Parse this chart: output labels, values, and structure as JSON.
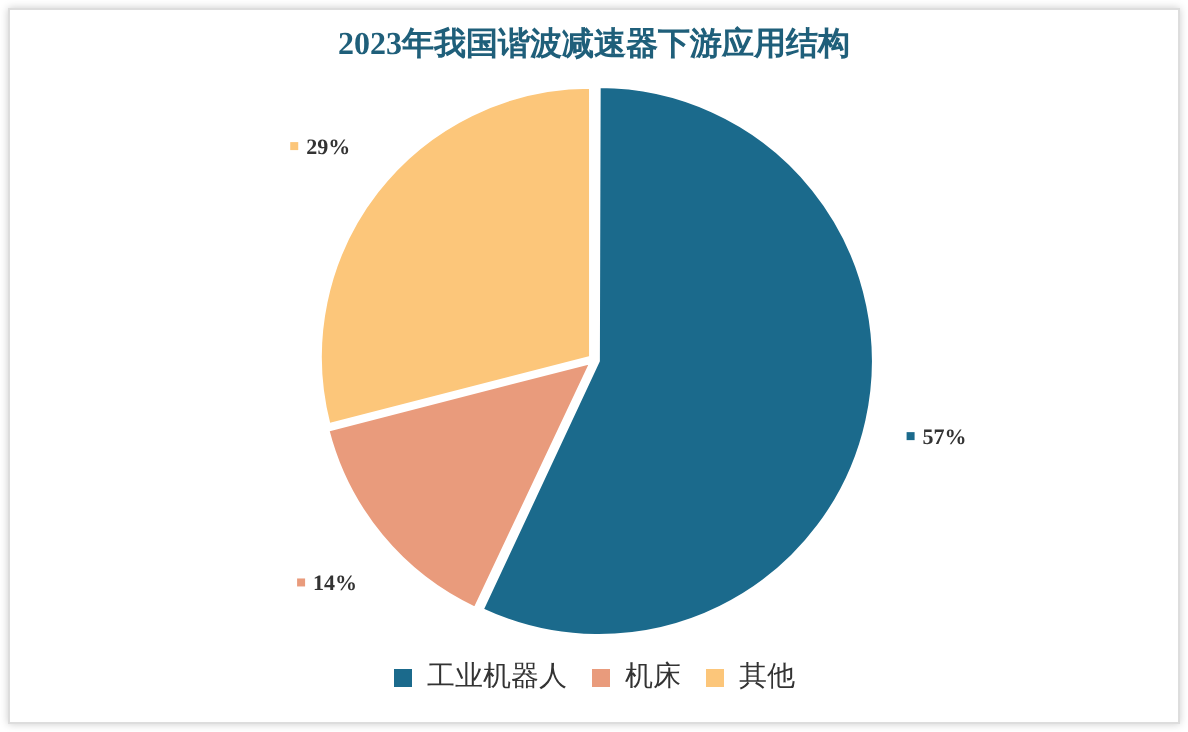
{
  "chart_data": {
    "type": "pie",
    "title": "2023年我国谐波减速器下游应用结构",
    "categories": [
      "工业机器人",
      "机床",
      "其他"
    ],
    "values": [
      57,
      14,
      29
    ],
    "colors": [
      "#1b6a8c",
      "#e99b7c",
      "#fcc67a"
    ],
    "value_labels": [
      "57%",
      "14%",
      "29%"
    ],
    "legend": "bottom"
  }
}
